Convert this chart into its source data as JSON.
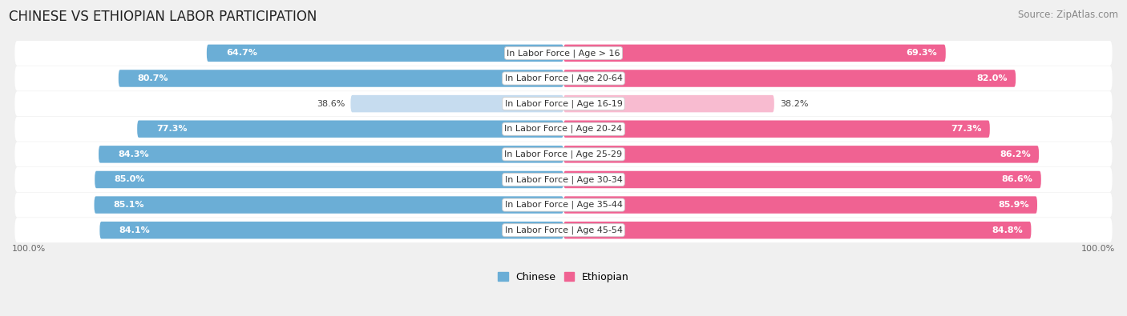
{
  "title": "CHINESE VS ETHIOPIAN LABOR PARTICIPATION",
  "source": "Source: ZipAtlas.com",
  "categories": [
    "In Labor Force | Age > 16",
    "In Labor Force | Age 20-64",
    "In Labor Force | Age 16-19",
    "In Labor Force | Age 20-24",
    "In Labor Force | Age 25-29",
    "In Labor Force | Age 30-34",
    "In Labor Force | Age 35-44",
    "In Labor Force | Age 45-54"
  ],
  "chinese_values": [
    64.7,
    80.7,
    38.6,
    77.3,
    84.3,
    85.0,
    85.1,
    84.1
  ],
  "ethiopian_values": [
    69.3,
    82.0,
    38.2,
    77.3,
    86.2,
    86.6,
    85.9,
    84.8
  ],
  "chinese_color": "#6BAED6",
  "ethiopian_color": "#F06292",
  "chinese_color_light": "#C6DCEF",
  "ethiopian_color_light": "#F8BBD0",
  "bar_height": 0.68,
  "row_bg_color": "#E8E8E8",
  "row_bg_light": "#F2F2F2",
  "background_color": "#f0f0f0",
  "max_value": 100.0,
  "title_fontsize": 12,
  "source_fontsize": 8.5,
  "label_fontsize": 8,
  "category_fontsize": 8,
  "legend_fontsize": 9,
  "low_threshold": 55
}
